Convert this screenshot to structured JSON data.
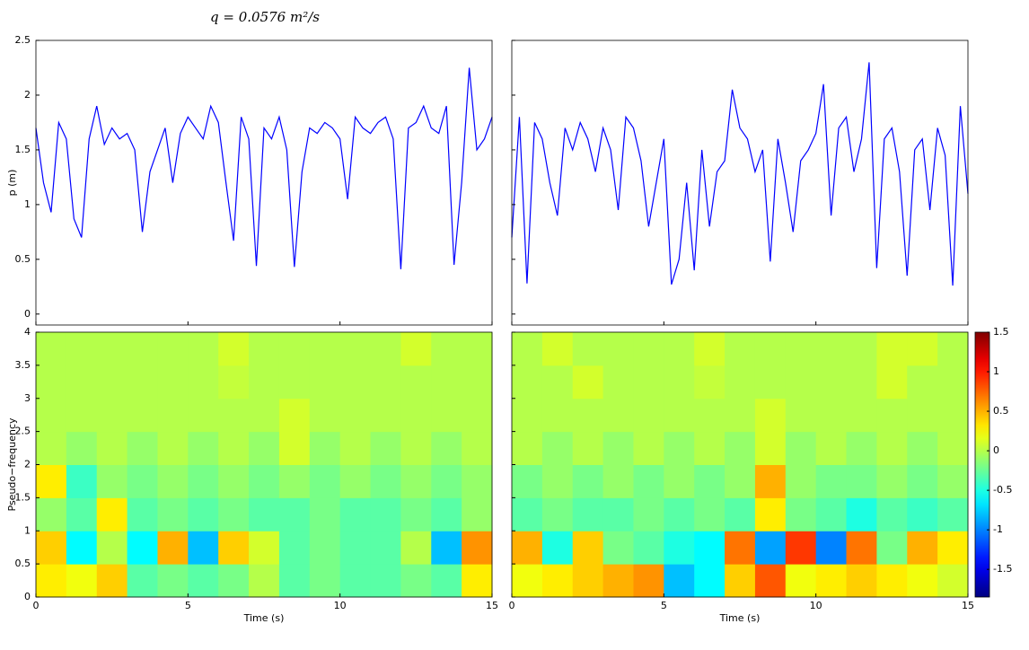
{
  "chart_data": [
    {
      "type": "line",
      "title": "q = 0.0576 m²/s",
      "ylabel": "p (m)",
      "color": "#0000ff",
      "xlim": [
        0,
        15
      ],
      "xticks": [
        0,
        5,
        10,
        15
      ],
      "ylim": [
        -0.1,
        2.5
      ],
      "yticks": [
        0,
        0.5,
        1,
        1.5,
        2,
        2.5
      ],
      "show_xticklabels": false,
      "show_yticklabels": true,
      "x": [
        0,
        0.25,
        0.5,
        0.75,
        1,
        1.25,
        1.5,
        1.75,
        2,
        2.25,
        2.5,
        2.75,
        3,
        3.25,
        3.5,
        3.75,
        4,
        4.25,
        4.5,
        4.75,
        5,
        5.25,
        5.5,
        5.75,
        6,
        6.25,
        6.5,
        6.75,
        7,
        7.25,
        7.5,
        7.75,
        8,
        8.25,
        8.5,
        8.75,
        9,
        9.25,
        9.5,
        9.75,
        10,
        10.25,
        10.5,
        10.75,
        11,
        11.25,
        11.5,
        11.75,
        12,
        12.25,
        12.5,
        12.75,
        13,
        13.25,
        13.5,
        13.75,
        14,
        14.25,
        14.5,
        14.75,
        15
      ],
      "values": [
        1.7,
        1.2,
        0.93,
        1.75,
        1.6,
        0.87,
        0.7,
        1.6,
        1.9,
        1.55,
        1.7,
        1.6,
        1.65,
        1.5,
        0.75,
        1.3,
        1.5,
        1.7,
        1.2,
        1.65,
        1.8,
        1.7,
        1.6,
        1.9,
        1.75,
        1.2,
        0.67,
        1.8,
        1.6,
        0.44,
        1.7,
        1.6,
        1.8,
        1.5,
        0.43,
        1.3,
        1.7,
        1.65,
        1.75,
        1.7,
        1.6,
        1.05,
        1.8,
        1.7,
        1.65,
        1.75,
        1.8,
        1.6,
        0.41,
        1.7,
        1.75,
        1.9,
        1.7,
        1.65,
        1.9,
        0.45,
        1.2,
        2.25,
        1.5,
        1.6,
        1.8
      ]
    },
    {
      "type": "line",
      "color": "#0000ff",
      "xlim": [
        0,
        15
      ],
      "xticks": [
        0,
        5,
        10,
        15
      ],
      "ylim": [
        -0.1,
        2.5
      ],
      "yticks": [
        0,
        0.5,
        1,
        1.5,
        2,
        2.5
      ],
      "show_xticklabels": false,
      "show_yticklabels": false,
      "x": [
        0,
        0.25,
        0.5,
        0.75,
        1,
        1.25,
        1.5,
        1.75,
        2,
        2.25,
        2.5,
        2.75,
        3,
        3.25,
        3.5,
        3.75,
        4,
        4.25,
        4.5,
        4.75,
        5,
        5.25,
        5.5,
        5.75,
        6,
        6.25,
        6.5,
        6.75,
        7,
        7.25,
        7.5,
        7.75,
        8,
        8.25,
        8.5,
        8.75,
        9,
        9.25,
        9.5,
        9.75,
        10,
        10.25,
        10.5,
        10.75,
        11,
        11.25,
        11.5,
        11.75,
        12,
        12.25,
        12.5,
        12.75,
        13,
        13.25,
        13.5,
        13.75,
        14,
        14.25,
        14.5,
        14.75,
        15
      ],
      "values": [
        0.7,
        1.8,
        0.28,
        1.75,
        1.6,
        1.2,
        0.9,
        1.7,
        1.5,
        1.75,
        1.6,
        1.3,
        1.7,
        1.5,
        0.95,
        1.8,
        1.7,
        1.4,
        0.8,
        1.2,
        1.6,
        0.27,
        0.5,
        1.2,
        0.4,
        1.5,
        0.8,
        1.3,
        1.4,
        2.05,
        1.7,
        1.6,
        1.3,
        1.5,
        0.48,
        1.6,
        1.2,
        0.75,
        1.4,
        1.5,
        1.65,
        2.1,
        0.9,
        1.7,
        1.8,
        1.3,
        1.6,
        2.3,
        0.42,
        1.6,
        1.7,
        1.3,
        0.35,
        1.5,
        1.6,
        0.95,
        1.7,
        1.45,
        0.26,
        1.9,
        1.1
      ]
    },
    {
      "type": "heatmap",
      "xlabel": "Time (s)",
      "ylabel": "Pseudo−frequency",
      "xlim": [
        0,
        15
      ],
      "xticks": [
        0,
        5,
        10,
        15
      ],
      "ylim": [
        0,
        4
      ],
      "yticks": [
        0,
        0.5,
        1,
        1.5,
        2,
        2.5,
        3,
        3.5,
        4
      ],
      "show_xticklabels": true,
      "show_yticklabels": true,
      "xbins": [
        0,
        1,
        2,
        3,
        4,
        5,
        6,
        7,
        8,
        9,
        10,
        11,
        12,
        13,
        14,
        15
      ],
      "ybins": [
        0,
        0.5,
        1,
        1.5,
        2,
        2.5,
        3,
        3.5,
        4
      ],
      "z": [
        [
          0.3,
          0.2,
          0.4,
          -0.3,
          -0.2,
          -0.3,
          -0.2,
          0,
          -0.3,
          -0.2,
          -0.3,
          -0.3,
          -0.2,
          -0.3,
          0.3
        ],
        [
          0.4,
          -0.6,
          0,
          -0.6,
          0.5,
          -0.8,
          0.4,
          0.1,
          -0.3,
          -0.2,
          -0.3,
          -0.3,
          0,
          -0.8,
          0.6
        ],
        [
          -0.1,
          -0.3,
          0.3,
          -0.3,
          -0.2,
          -0.3,
          -0.2,
          -0.3,
          -0.3,
          -0.2,
          -0.3,
          -0.3,
          -0.2,
          -0.3,
          -0.1
        ],
        [
          0.3,
          -0.4,
          -0.1,
          -0.2,
          -0.1,
          -0.2,
          -0.1,
          -0.2,
          -0.1,
          -0.2,
          -0.1,
          -0.2,
          -0.1,
          -0.2,
          -0.1
        ],
        [
          0,
          -0.1,
          0,
          -0.1,
          0,
          -0.1,
          0,
          -0.1,
          0.1,
          -0.1,
          0,
          -0.1,
          0,
          -0.1,
          0
        ],
        [
          0,
          0,
          0,
          0,
          0,
          0,
          0,
          0,
          0.1,
          0,
          0,
          0,
          0,
          0,
          0
        ],
        [
          0,
          0,
          0,
          0,
          0,
          0,
          0.05,
          0,
          0,
          0,
          0,
          0,
          0,
          0,
          0
        ],
        [
          0,
          0,
          0,
          0,
          0,
          0,
          0.1,
          0,
          0,
          0,
          0,
          0,
          0.1,
          0,
          0
        ]
      ]
    },
    {
      "type": "heatmap",
      "xlabel": "Time (s)",
      "xlim": [
        0,
        15
      ],
      "xticks": [
        0,
        5,
        10,
        15
      ],
      "ylim": [
        0,
        4
      ],
      "yticks": [
        0,
        0.5,
        1,
        1.5,
        2,
        2.5,
        3,
        3.5,
        4
      ],
      "show_xticklabels": true,
      "show_yticklabels": false,
      "xbins": [
        0,
        1,
        2,
        3,
        4,
        5,
        6,
        7,
        8,
        9,
        10,
        11,
        12,
        13,
        14,
        15
      ],
      "ybins": [
        0,
        0.5,
        1,
        1.5,
        2,
        2.5,
        3,
        3.5,
        4
      ],
      "z": [
        [
          0.2,
          0.3,
          0.4,
          0.5,
          0.6,
          -0.8,
          -0.6,
          0.4,
          0.8,
          0.2,
          0.3,
          0.4,
          0.3,
          0.2,
          0.1
        ],
        [
          0.5,
          -0.5,
          0.4,
          -0.2,
          -0.3,
          -0.5,
          -0.6,
          0.7,
          -0.9,
          0.9,
          -1.0,
          0.7,
          -0.2,
          0.5,
          0.3
        ],
        [
          -0.3,
          -0.2,
          -0.3,
          -0.3,
          -0.2,
          -0.3,
          -0.2,
          -0.3,
          0.3,
          -0.2,
          -0.3,
          -0.5,
          -0.3,
          -0.4,
          -0.3
        ],
        [
          -0.2,
          -0.1,
          -0.2,
          -0.1,
          -0.2,
          -0.1,
          -0.2,
          -0.1,
          0.5,
          -0.1,
          -0.2,
          -0.2,
          -0.1,
          -0.2,
          -0.1
        ],
        [
          0,
          -0.1,
          0,
          -0.1,
          0,
          -0.1,
          0,
          -0.1,
          0.1,
          -0.1,
          0,
          -0.1,
          0,
          -0.1,
          0
        ],
        [
          0,
          0,
          0,
          0,
          0,
          0,
          0,
          0,
          0.1,
          0,
          0,
          0,
          0,
          0,
          0
        ],
        [
          0,
          0,
          0.1,
          0,
          0,
          0,
          0.05,
          0,
          0,
          0,
          0,
          0,
          0.1,
          0,
          0
        ],
        [
          0,
          0.1,
          0,
          0,
          0,
          0,
          0.1,
          0,
          0,
          0,
          0,
          0,
          0.1,
          0.1,
          0
        ]
      ]
    },
    {
      "type": "colorbar",
      "clim": [
        -1.85,
        1.5
      ],
      "ticks": [
        -1.5,
        -1,
        -0.5,
        0,
        0.5,
        1,
        1.5
      ]
    }
  ]
}
